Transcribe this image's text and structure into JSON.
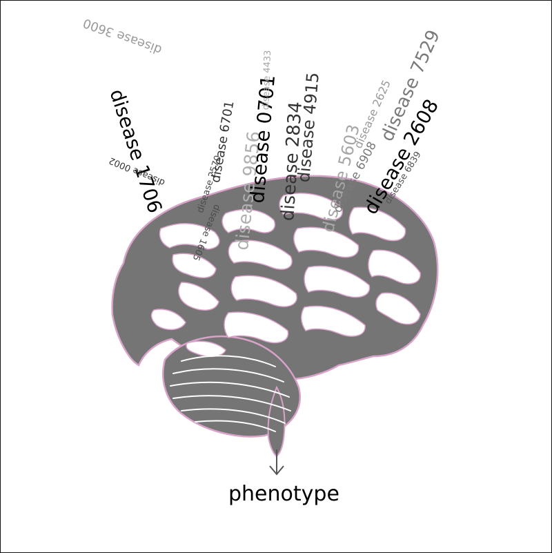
{
  "diagram": {
    "outcome_label": "phenotype",
    "labels": [
      {
        "text": "disease 1706",
        "color": "#000000"
      },
      {
        "text": "disease 0002",
        "color": "#333333"
      },
      {
        "text": "disease 3600",
        "color": "#9a9a9a"
      },
      {
        "text": "disease 2570",
        "color": "#4a4a4a"
      },
      {
        "text": "disease 6701",
        "color": "#333333"
      },
      {
        "text": "disease 1605",
        "color": "#4a4a4a"
      },
      {
        "text": "disease 9856",
        "color": "#b0b0b0"
      },
      {
        "text": "disease 0701",
        "color": "#000000"
      },
      {
        "text": "disease 4433",
        "color": "#a6a6a6"
      },
      {
        "text": "disease  2834",
        "color": "#333333"
      },
      {
        "text": "disease 4915",
        "color": "#333333"
      },
      {
        "text": "disease 5603",
        "color": "#a6a6a6"
      },
      {
        "text": "disease 6908",
        "color": "#7a7a7a"
      },
      {
        "text": "disease 2625",
        "color": "#9a9a9a"
      },
      {
        "text": "disease 7529",
        "color": "#7a7a7a"
      },
      {
        "text": "disease 2608",
        "color": "#000000"
      },
      {
        "text": "disease 6839",
        "color": "#555555"
      }
    ],
    "colors": {
      "brain_fill": "#757575",
      "brain_outline": "#d9a3c9",
      "highlight": "#ffffff",
      "arrow": "#555555"
    }
  }
}
